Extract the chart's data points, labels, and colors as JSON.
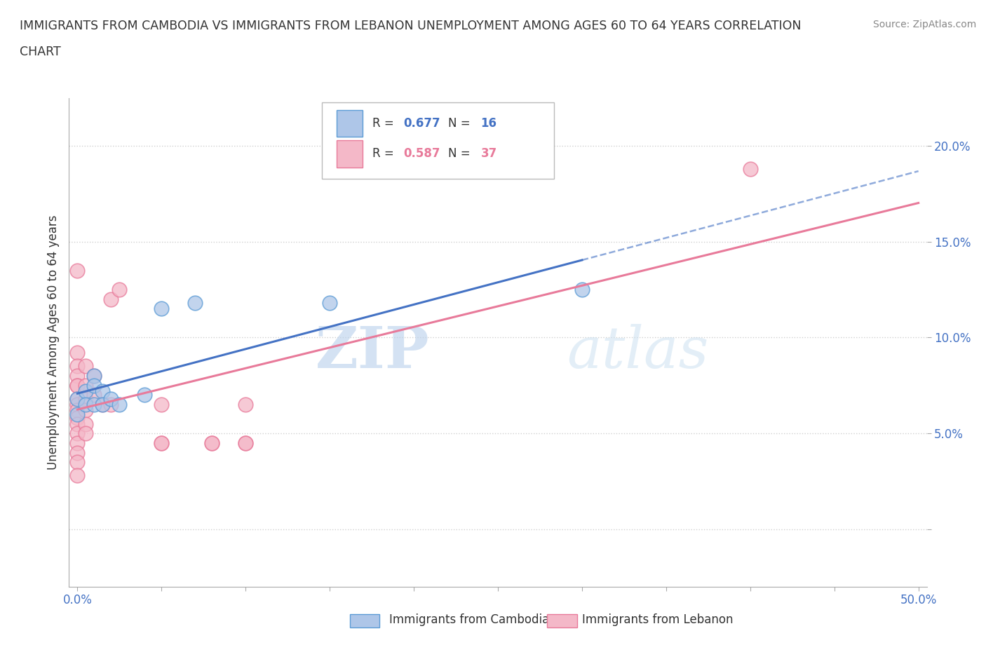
{
  "title_line1": "IMMIGRANTS FROM CAMBODIA VS IMMIGRANTS FROM LEBANON UNEMPLOYMENT AMONG AGES 60 TO 64 YEARS CORRELATION",
  "title_line2": "CHART",
  "source": "Source: ZipAtlas.com",
  "ylabel": "Unemployment Among Ages 60 to 64 years",
  "xlim": [
    -0.005,
    0.505
  ],
  "ylim": [
    -0.03,
    0.225
  ],
  "xticks": [
    0.0,
    0.05,
    0.1,
    0.15,
    0.2,
    0.25,
    0.3,
    0.35,
    0.4,
    0.45,
    0.5
  ],
  "yticks": [
    0.0,
    0.05,
    0.1,
    0.15,
    0.2
  ],
  "cambodia_color": "#aec6e8",
  "cambodia_edge": "#5b9bd5",
  "lebanon_color": "#f4b8c8",
  "lebanon_edge": "#e87a9a",
  "cambodia_R": "0.677",
  "cambodia_N": "16",
  "lebanon_R": "0.587",
  "lebanon_N": "37",
  "cambodia_line_color": "#4472c4",
  "lebanon_line_color": "#e87a9a",
  "watermark_zip": "ZIP",
  "watermark_atlas": "atlas",
  "background": "#ffffff",
  "grid_color": "#d0d0d0",
  "cambodia_scatter": [
    [
      0.0,
      0.06
    ],
    [
      0.0,
      0.068
    ],
    [
      0.005,
      0.072
    ],
    [
      0.005,
      0.065
    ],
    [
      0.01,
      0.08
    ],
    [
      0.01,
      0.075
    ],
    [
      0.01,
      0.065
    ],
    [
      0.015,
      0.072
    ],
    [
      0.015,
      0.065
    ],
    [
      0.02,
      0.068
    ],
    [
      0.025,
      0.065
    ],
    [
      0.04,
      0.07
    ],
    [
      0.05,
      0.115
    ],
    [
      0.07,
      0.118
    ],
    [
      0.15,
      0.118
    ],
    [
      0.3,
      0.125
    ]
  ],
  "lebanon_scatter": [
    [
      0.0,
      0.135
    ],
    [
      0.0,
      0.092
    ],
    [
      0.0,
      0.085
    ],
    [
      0.0,
      0.08
    ],
    [
      0.0,
      0.075
    ],
    [
      0.0,
      0.075
    ],
    [
      0.0,
      0.068
    ],
    [
      0.0,
      0.065
    ],
    [
      0.0,
      0.062
    ],
    [
      0.0,
      0.058
    ],
    [
      0.0,
      0.055
    ],
    [
      0.0,
      0.05
    ],
    [
      0.0,
      0.045
    ],
    [
      0.0,
      0.04
    ],
    [
      0.0,
      0.035
    ],
    [
      0.0,
      0.028
    ],
    [
      0.005,
      0.085
    ],
    [
      0.005,
      0.075
    ],
    [
      0.005,
      0.068
    ],
    [
      0.005,
      0.062
    ],
    [
      0.005,
      0.055
    ],
    [
      0.005,
      0.05
    ],
    [
      0.01,
      0.08
    ],
    [
      0.01,
      0.07
    ],
    [
      0.015,
      0.065
    ],
    [
      0.02,
      0.12
    ],
    [
      0.02,
      0.065
    ],
    [
      0.025,
      0.125
    ],
    [
      0.05,
      0.065
    ],
    [
      0.05,
      0.045
    ],
    [
      0.05,
      0.045
    ],
    [
      0.08,
      0.045
    ],
    [
      0.08,
      0.045
    ],
    [
      0.1,
      0.065
    ],
    [
      0.1,
      0.045
    ],
    [
      0.1,
      0.045
    ],
    [
      0.4,
      0.188
    ]
  ]
}
